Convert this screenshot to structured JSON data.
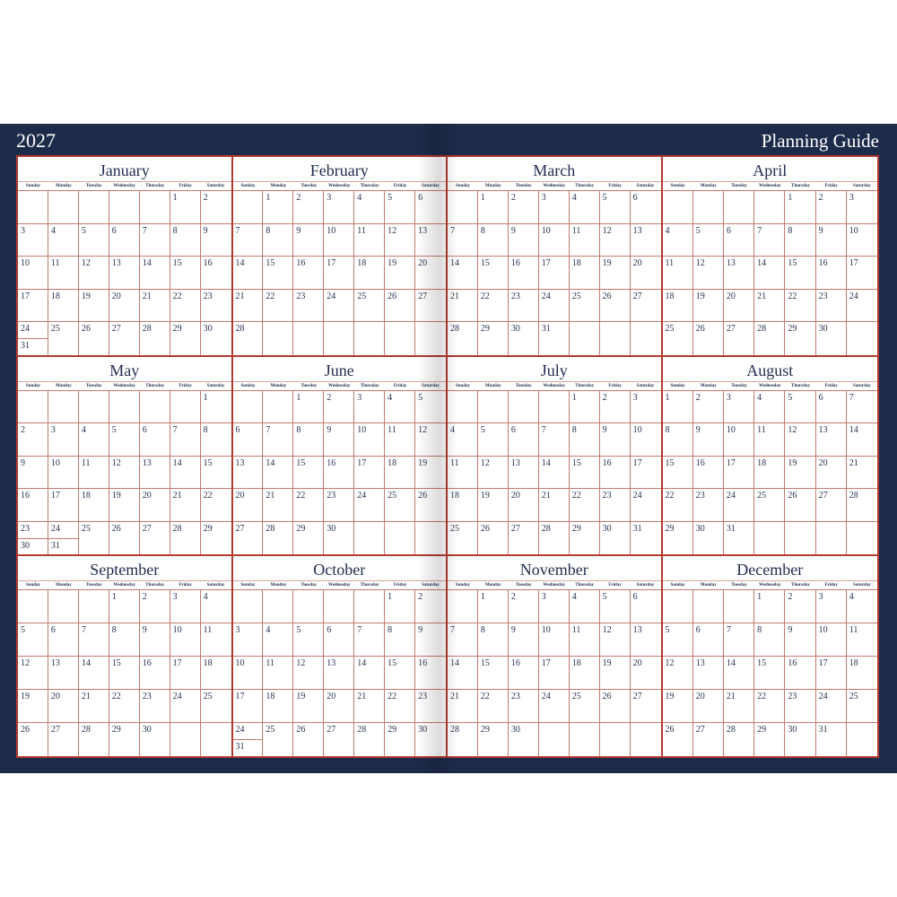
{
  "header": {
    "year": "2027",
    "title": "Planning Guide"
  },
  "weekdays": [
    "Sunday",
    "Monday",
    "Tuesday",
    "Wednesday",
    "Thursday",
    "Friday",
    "Saturday"
  ],
  "months": [
    {
      "name": "January",
      "first_weekday": 5,
      "days": 31
    },
    {
      "name": "February",
      "first_weekday": 1,
      "days": 28
    },
    {
      "name": "March",
      "first_weekday": 1,
      "days": 31
    },
    {
      "name": "April",
      "first_weekday": 4,
      "days": 30
    },
    {
      "name": "May",
      "first_weekday": 6,
      "days": 31
    },
    {
      "name": "June",
      "first_weekday": 2,
      "days": 30
    },
    {
      "name": "July",
      "first_weekday": 4,
      "days": 31
    },
    {
      "name": "August",
      "first_weekday": 0,
      "days": 31
    },
    {
      "name": "September",
      "first_weekday": 3,
      "days": 30
    },
    {
      "name": "October",
      "first_weekday": 5,
      "days": 31
    },
    {
      "name": "November",
      "first_weekday": 1,
      "days": 30
    },
    {
      "name": "December",
      "first_weekday": 3,
      "days": 31
    }
  ],
  "colors": {
    "background": "#1d2b4a",
    "grid_lines": "#b23a2e",
    "text": "#1f2d4d"
  }
}
